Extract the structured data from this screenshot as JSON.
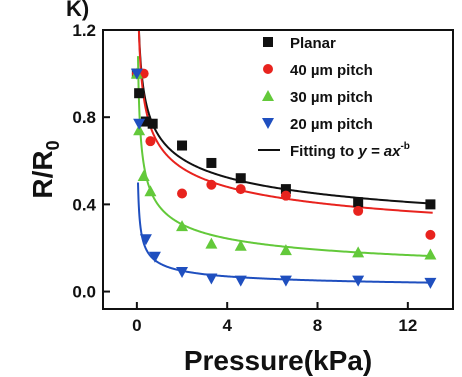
{
  "chart_data": {
    "type": "scatter",
    "panel_label": "K)",
    "xlabel": "Pressure(kPa)",
    "ylabel_main": "R/R",
    "ylabel_sub": "0",
    "xlim": [
      -1.5,
      14
    ],
    "ylim": [
      -0.08,
      1.2
    ],
    "xticks": [
      0,
      4,
      8,
      12
    ],
    "yticks": [
      0.0,
      0.4,
      0.8,
      1.2
    ],
    "ytick_labels": [
      "0.0",
      "0.4",
      "0.8",
      "1.2"
    ],
    "legend_position": "top-right",
    "series": [
      {
        "name": "Planar",
        "marker": "square",
        "color": "#111111",
        "x": [
          0.0,
          0.1,
          0.4,
          0.7,
          2.0,
          3.3,
          4.6,
          6.6,
          9.8,
          13.0
        ],
        "y": [
          1.0,
          0.91,
          0.78,
          0.77,
          0.67,
          0.59,
          0.52,
          0.47,
          0.41,
          0.4
        ]
      },
      {
        "name": "40 µm pitch",
        "marker": "circle",
        "color": "#e8231e",
        "x": [
          0.0,
          0.3,
          0.6,
          2.0,
          3.3,
          4.6,
          6.6,
          9.8,
          13.0
        ],
        "y": [
          1.0,
          1.0,
          0.69,
          0.45,
          0.49,
          0.47,
          0.44,
          0.37,
          0.26
        ]
      },
      {
        "name": "30 µm pitch",
        "marker": "triangle-up",
        "color": "#63c93a",
        "x": [
          0.0,
          0.1,
          0.3,
          0.6,
          2.0,
          3.3,
          4.6,
          6.6,
          9.8,
          13.0
        ],
        "y": [
          1.0,
          0.74,
          0.53,
          0.46,
          0.3,
          0.22,
          0.21,
          0.19,
          0.18,
          0.17
        ]
      },
      {
        "name": "20 µm pitch",
        "marker": "triangle-down",
        "color": "#1f4fbf",
        "x": [
          0.0,
          0.1,
          0.4,
          0.8,
          2.0,
          3.3,
          4.6,
          6.6,
          9.8,
          13.0
        ],
        "y": [
          1.0,
          0.77,
          0.24,
          0.16,
          0.09,
          0.06,
          0.05,
          0.05,
          0.05,
          0.04
        ]
      }
    ],
    "fit": {
      "name_prefix": "Fitting to ",
      "name_formula": "y = ax",
      "name_exponent": "-b",
      "curves": [
        {
          "color": "#111111",
          "a": 0.71,
          "b": 0.22
        },
        {
          "color": "#e8231e",
          "a": 0.67,
          "b": 0.24
        },
        {
          "color": "#63c93a",
          "a": 0.39,
          "b": 0.34
        },
        {
          "color": "#1f4fbf",
          "a": 0.13,
          "b": 0.45
        }
      ]
    }
  }
}
